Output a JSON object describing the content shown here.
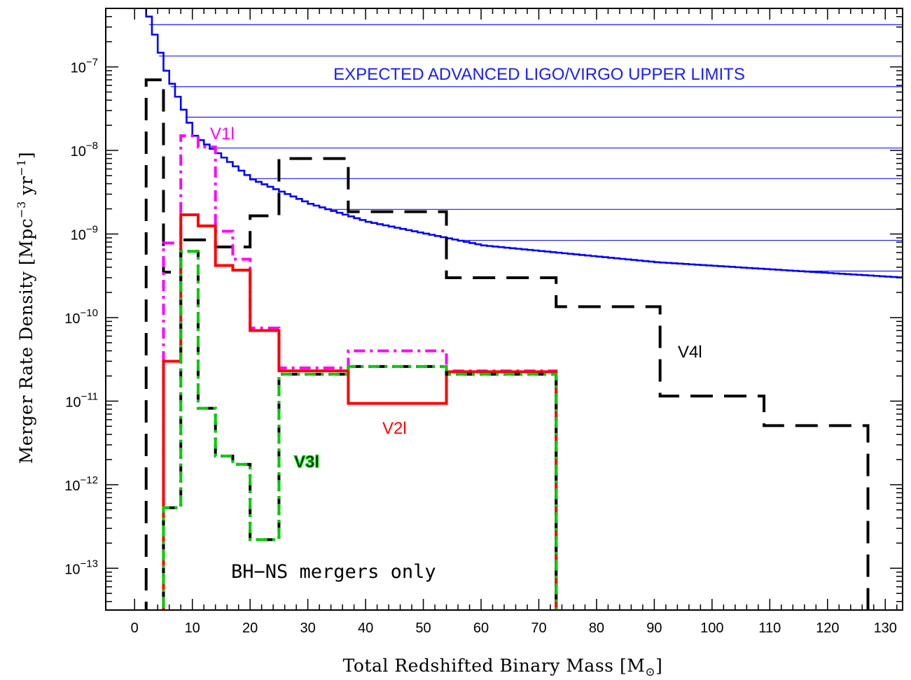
{
  "chart_data": {
    "type": "line",
    "xlabel": "Total Redshifted Binary Mass [M",
    "xlabel_sub": "⊙",
    "xlabel_close": "]",
    "ylabel": "Merger Rate Density [Mpc",
    "ylabel_exp": "−3",
    "ylabel_mid": " yr",
    "ylabel_exp2": "−1",
    "ylabel_close": "]",
    "xlim": [
      -5,
      133
    ],
    "ylim_log10": [
      -13.5,
      -6.3
    ],
    "y_scale": "log",
    "x_ticks": [
      0,
      10,
      20,
      30,
      40,
      50,
      60,
      70,
      80,
      90,
      100,
      110,
      120,
      130
    ],
    "x_tick_labels": [
      "0",
      "10",
      "20",
      "30",
      "40",
      "50",
      "60",
      "70",
      "80",
      "90",
      "100",
      "110",
      "120",
      "130"
    ],
    "y_ticks_log10": [
      -13,
      -12,
      -11,
      -10,
      -9,
      -8,
      -7
    ],
    "y_tick_base": "10",
    "y_tick_exps": [
      "−13",
      "−12",
      "−11",
      "−10",
      "−9",
      "−8",
      "−7"
    ],
    "grid": false,
    "limit_lines": {
      "label": "EXPECTED ADVANCED LIGO/VIRGO UPPER LIMITS",
      "color": "#1a1aff",
      "x_start": 4,
      "y_values": [
        3.2e-07,
        1.35e-07,
        5.8e-08,
        2.5e-08,
        1.07e-08,
        4.6e-09,
        1.97e-09,
        8.4e-10,
        3.6e-10
      ]
    },
    "limit_curve": {
      "color": "#0000ff",
      "description_points": [
        [
          2,
          4e-07
        ],
        [
          5,
          9e-08
        ],
        [
          10,
          1.5e-08
        ],
        [
          20,
          4.5e-09
        ],
        [
          30,
          2.3e-09
        ],
        [
          40,
          1.4e-09
        ],
        [
          60,
          7.3e-10
        ],
        [
          90,
          4.6e-10
        ],
        [
          133,
          3e-10
        ]
      ]
    },
    "series": [
      {
        "name": "V1l",
        "color": "#ff00ff",
        "style": "dash-dot",
        "edges": [
          5,
          8,
          11,
          14,
          17,
          20,
          25,
          37,
          54,
          73
        ],
        "values": [
          7.8e-10,
          1.5e-08,
          1.1e-08,
          1.08e-09,
          5e-10,
          7.5e-11,
          2.5e-11,
          4e-11,
          2.3e-11
        ]
      },
      {
        "name": "V2l",
        "color": "#ff0000",
        "style": "solid",
        "edges": [
          5,
          8,
          11,
          14,
          17,
          20,
          25,
          37,
          54,
          73
        ],
        "values": [
          3e-11,
          1.7e-09,
          1.25e-09,
          4.2e-10,
          3.7e-10,
          7e-11,
          2.3e-11,
          9.4e-12,
          2.25e-11
        ]
      },
      {
        "name": "V3l",
        "color": "#00cc00",
        "style": "dash-dot",
        "edges": [
          5,
          8,
          11,
          14,
          17,
          20,
          25,
          37,
          54,
          73
        ],
        "values": [
          5.3e-13,
          6.2e-10,
          8.2e-12,
          2.2e-12,
          1.75e-12,
          2.2e-13,
          2.1e-11,
          2.6e-11,
          2.1e-11
        ]
      },
      {
        "name": "V4l",
        "color": "#000000",
        "style": "dashed",
        "edges": [
          2,
          5,
          8,
          14,
          20,
          25,
          37,
          54,
          73,
          91,
          109,
          127
        ],
        "values": [
          7e-08,
          3.5e-10,
          8.5e-10,
          7e-10,
          1.65e-09,
          8e-09,
          1.85e-09,
          3e-10,
          1.35e-10,
          1.15e-11,
          5.1e-12
        ]
      }
    ],
    "annotations": {
      "V1l": "V1l",
      "V2l": "V2l",
      "V3l": "V3l",
      "V4l": "V4l",
      "note": "BH−NS mergers only"
    }
  }
}
